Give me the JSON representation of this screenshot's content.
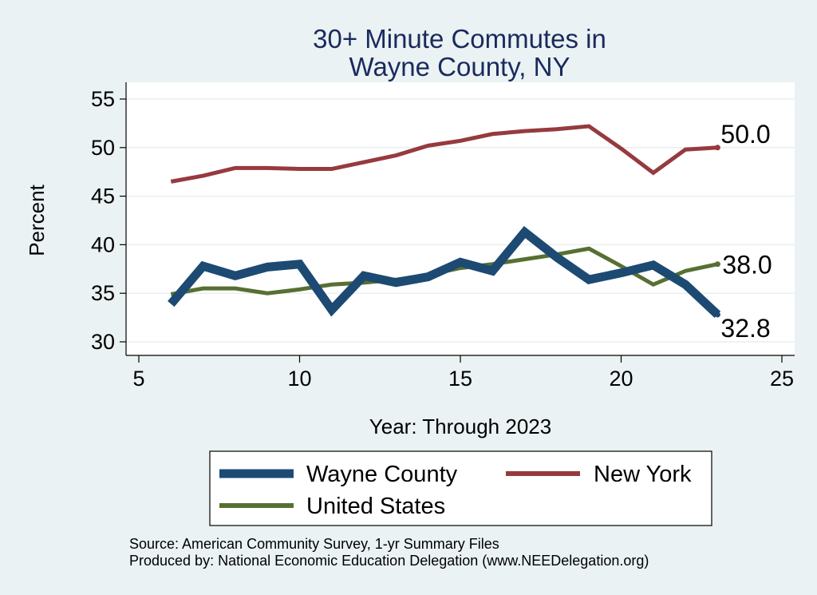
{
  "chart_data": {
    "type": "line",
    "title_lines": [
      "30+ Minute Commutes in",
      "Wayne County, NY"
    ],
    "xlabel": "Year: Through 2023",
    "ylabel": "Percent",
    "xlim": [
      5,
      25
    ],
    "ylim": [
      29,
      56
    ],
    "xticks": [
      5,
      10,
      15,
      20,
      25
    ],
    "yticks": [
      30,
      35,
      40,
      45,
      50,
      55
    ],
    "grid": true,
    "legend_position": "bottom",
    "series": [
      {
        "name": "Wayne County",
        "color": "#1c4a73",
        "width": "thick",
        "end_label": "32.8",
        "x": [
          6,
          7,
          8,
          9,
          10,
          11,
          12,
          13,
          14,
          15,
          16,
          17,
          18,
          19,
          20,
          21,
          22,
          23
        ],
        "values": [
          33.9,
          37.8,
          36.8,
          37.7,
          38.0,
          33.3,
          36.8,
          36.1,
          36.7,
          38.2,
          37.3,
          41.3,
          38.7,
          36.4,
          37.1,
          37.9,
          35.9,
          32.8
        ]
      },
      {
        "name": "New York",
        "color": "#963a3e",
        "width": "medium",
        "end_label": "50.0",
        "x": [
          6,
          7,
          8,
          9,
          10,
          11,
          12,
          13,
          14,
          15,
          16,
          17,
          18,
          19,
          20,
          21,
          22,
          23
        ],
        "values": [
          46.5,
          47.1,
          47.9,
          47.9,
          47.8,
          47.8,
          48.5,
          49.2,
          50.2,
          50.7,
          51.4,
          51.7,
          51.9,
          52.2,
          49.9,
          47.4,
          49.8,
          50.0
        ]
      },
      {
        "name": "United States",
        "color": "#577032",
        "width": "medium",
        "end_label": "38.0",
        "x": [
          6,
          7,
          8,
          9,
          10,
          11,
          12,
          13,
          14,
          15,
          16,
          17,
          18,
          19,
          20,
          21,
          22,
          23
        ],
        "values": [
          34.9,
          35.5,
          35.5,
          35.0,
          35.4,
          35.9,
          36.1,
          36.4,
          36.9,
          37.6,
          38.0,
          38.5,
          39.0,
          39.6,
          37.8,
          35.9,
          37.3,
          38.0
        ]
      }
    ]
  },
  "notes": {
    "source": "Source: American Community Survey, 1-yr Summary Files",
    "produced_by": "Produced by: National Economic Education Delegation (www.NEEDelegation.org)"
  }
}
